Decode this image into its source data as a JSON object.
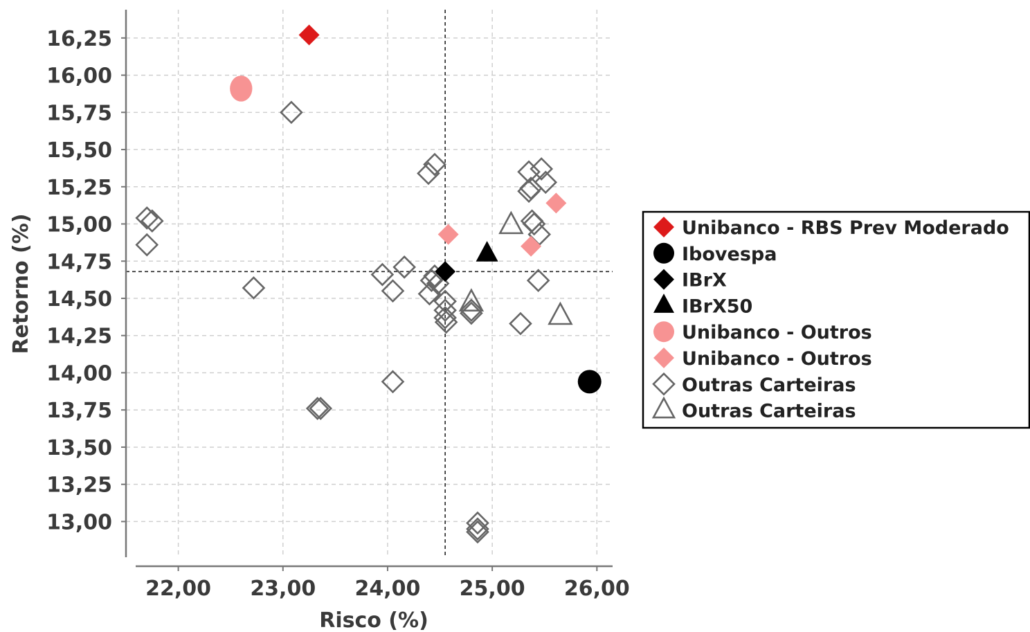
{
  "chart_data": {
    "type": "scatter",
    "xlabel": "Risco (%)",
    "ylabel": "Retorno (%)",
    "xlim": [
      21.5,
      26.15
    ],
    "ylim": [
      12.76,
      16.44
    ],
    "x_ticks": [
      "22,00",
      "23,00",
      "24,00",
      "25,00",
      "26,00"
    ],
    "x_tick_values": [
      22,
      23,
      24,
      25,
      26
    ],
    "y_ticks": [
      "16,25",
      "16,00",
      "15,75",
      "15,50",
      "15,25",
      "15,00",
      "14,75",
      "14,50",
      "14,25",
      "14,00",
      "13,75",
      "13,50",
      "13,25",
      "13,00"
    ],
    "y_tick_values": [
      16.25,
      16.0,
      15.75,
      15.5,
      15.25,
      15.0,
      14.75,
      14.5,
      14.25,
      14.0,
      13.75,
      13.5,
      13.25,
      13.0
    ],
    "grid": true,
    "reference_lines": {
      "x": 24.55,
      "y": 14.68
    },
    "legend_position": "right",
    "series": [
      {
        "name": "Unibanco - RBS Prev Moderado",
        "marker": "diamond",
        "filled": true,
        "color": "#dd1a1a",
        "points": [
          [
            23.25,
            16.27
          ]
        ]
      },
      {
        "name": "Ibovespa",
        "marker": "circle",
        "filled": true,
        "color": "#000000",
        "points": [
          [
            25.93,
            13.94
          ]
        ]
      },
      {
        "name": "IBrX",
        "marker": "diamond",
        "filled": true,
        "color": "#000000",
        "points": [
          [
            24.55,
            14.68
          ]
        ]
      },
      {
        "name": "IBrX50",
        "marker": "triangle",
        "filled": true,
        "color": "#000000",
        "points": [
          [
            24.95,
            14.8
          ]
        ]
      },
      {
        "name": "Unibanco - Outros",
        "marker": "circle",
        "filled": true,
        "color": "#f79393",
        "points": [
          [
            22.6,
            15.91
          ]
        ]
      },
      {
        "name": "Unibanco - Outros",
        "marker": "diamond",
        "filled": true,
        "color": "#f79393",
        "points": [
          [
            24.58,
            14.93
          ],
          [
            25.61,
            15.14
          ],
          [
            25.37,
            14.85
          ]
        ]
      },
      {
        "name": "Outras Carteiras",
        "marker": "diamond",
        "filled": false,
        "color": "#666666",
        "points": [
          [
            21.7,
            15.04
          ],
          [
            21.75,
            15.02
          ],
          [
            21.7,
            14.86
          ],
          [
            22.72,
            14.57
          ],
          [
            23.08,
            15.75
          ],
          [
            23.33,
            13.76
          ],
          [
            23.36,
            13.76
          ],
          [
            23.95,
            14.66
          ],
          [
            24.05,
            14.55
          ],
          [
            24.05,
            13.94
          ],
          [
            24.16,
            14.71
          ],
          [
            24.39,
            15.34
          ],
          [
            24.45,
            15.4
          ],
          [
            24.42,
            14.62
          ],
          [
            24.45,
            14.65
          ],
          [
            24.48,
            14.6
          ],
          [
            24.4,
            14.53
          ],
          [
            24.55,
            14.48
          ],
          [
            24.55,
            14.42
          ],
          [
            24.55,
            14.37
          ],
          [
            24.56,
            14.34
          ],
          [
            24.8,
            14.42
          ],
          [
            24.8,
            14.4
          ],
          [
            24.86,
            12.99
          ],
          [
            24.86,
            12.95
          ],
          [
            24.86,
            12.93
          ],
          [
            25.27,
            14.33
          ],
          [
            25.35,
            15.35
          ],
          [
            25.37,
            15.24
          ],
          [
            25.35,
            15.22
          ],
          [
            25.38,
            15.02
          ],
          [
            25.4,
            15.0
          ],
          [
            25.45,
            14.93
          ],
          [
            25.47,
            15.37
          ],
          [
            25.51,
            15.28
          ],
          [
            25.44,
            14.62
          ]
        ]
      },
      {
        "name": "Outras Carteiras",
        "marker": "triangle",
        "filled": false,
        "color": "#666666",
        "points": [
          [
            24.8,
            14.47
          ],
          [
            25.18,
            14.99
          ],
          [
            25.65,
            14.38
          ]
        ]
      }
    ]
  }
}
